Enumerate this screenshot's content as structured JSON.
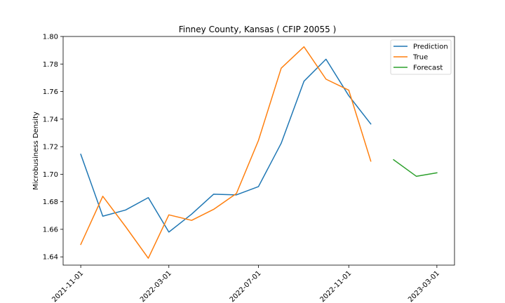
{
  "chart_data": {
    "type": "line",
    "title": "Finney County, Kansas ( CFIP 20055 )",
    "xlabel": "",
    "ylabel": "Microbusiness Density",
    "ylim": [
      1.634,
      1.8
    ],
    "xlim": [
      "2021-10-08",
      "2023-03-25"
    ],
    "y_ticks": [
      1.64,
      1.66,
      1.68,
      1.7,
      1.72,
      1.74,
      1.76,
      1.78,
      1.8
    ],
    "y_tick_labels": [
      "1.64",
      "1.66",
      "1.68",
      "1.70",
      "1.72",
      "1.74",
      "1.76",
      "1.78",
      "1.80"
    ],
    "x_ticks": [
      "2021-11-01",
      "2022-03-01",
      "2022-07-01",
      "2022-11-01",
      "2023-03-01"
    ],
    "x_tick_labels": [
      "2021-11-01",
      "2022-03-01",
      "2022-07-01",
      "2022-11-01",
      "2023-03-01"
    ],
    "grid": false,
    "legend_position": "top-right",
    "series": [
      {
        "name": "Prediction",
        "color": "#1f77b4",
        "x": [
          "2021-11-01",
          "2021-12-01",
          "2022-01-01",
          "2022-02-01",
          "2022-03-01",
          "2022-04-01",
          "2022-05-01",
          "2022-06-01",
          "2022-07-01",
          "2022-08-01",
          "2022-09-01",
          "2022-10-01",
          "2022-11-01",
          "2022-12-01"
        ],
        "values": [
          1.7145,
          1.6695,
          1.674,
          1.683,
          1.658,
          1.671,
          1.6855,
          1.685,
          1.691,
          1.7225,
          1.7675,
          1.7835,
          1.757,
          1.7365
        ]
      },
      {
        "name": "True",
        "color": "#ff7f0e",
        "x": [
          "2021-11-01",
          "2021-12-01",
          "2022-01-01",
          "2022-02-01",
          "2022-03-01",
          "2022-04-01",
          "2022-05-01",
          "2022-06-01",
          "2022-07-01",
          "2022-08-01",
          "2022-09-01",
          "2022-10-01",
          "2022-11-01",
          "2022-12-01"
        ],
        "values": [
          1.649,
          1.684,
          1.662,
          1.639,
          1.6705,
          1.6665,
          1.6745,
          1.686,
          1.7245,
          1.777,
          1.7925,
          1.769,
          1.761,
          1.7095
        ]
      },
      {
        "name": "Forecast",
        "color": "#2ca02c",
        "x": [
          "2023-01-01",
          "2023-02-01",
          "2023-03-01"
        ],
        "values": [
          1.7105,
          1.6985,
          1.701
        ]
      }
    ]
  }
}
